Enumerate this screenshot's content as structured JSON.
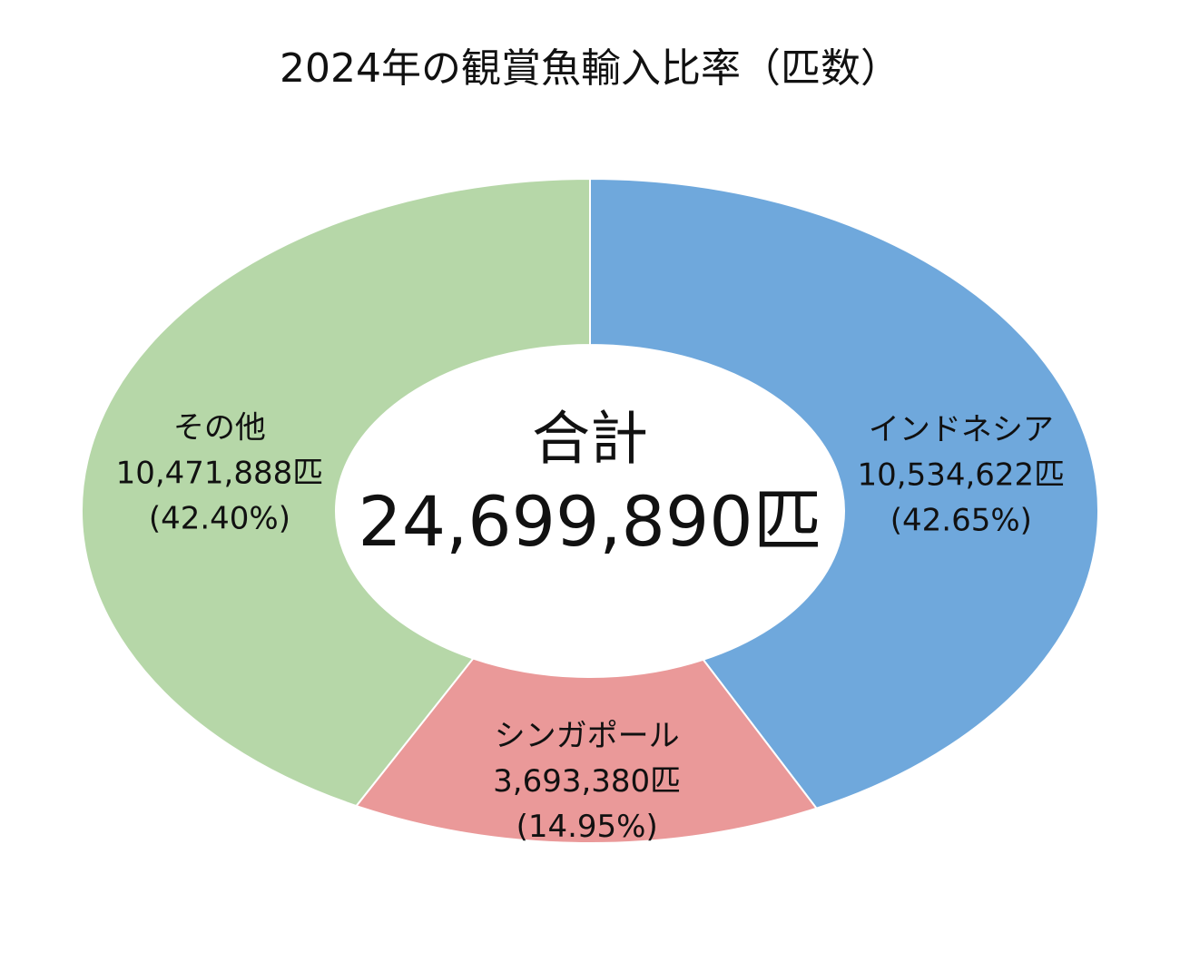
{
  "chart_data": {
    "type": "donut",
    "title": "2024年の観賞魚輸入比率（匹数）",
    "categories": [
      "インドネシア",
      "シンガポール",
      "その他"
    ],
    "values": [
      10534622,
      3693380,
      10471888
    ],
    "value_labels": [
      "10,534,622匹",
      "3,693,380匹",
      "10,471,888匹"
    ],
    "percentage_labels": [
      "(42.65%)",
      "(14.95%)",
      "(42.40%)"
    ],
    "colors": [
      "#6fa8dc",
      "#ea9999",
      "#b6d7a8"
    ],
    "center_text": [
      "合計",
      "24,699,890匹"
    ]
  }
}
